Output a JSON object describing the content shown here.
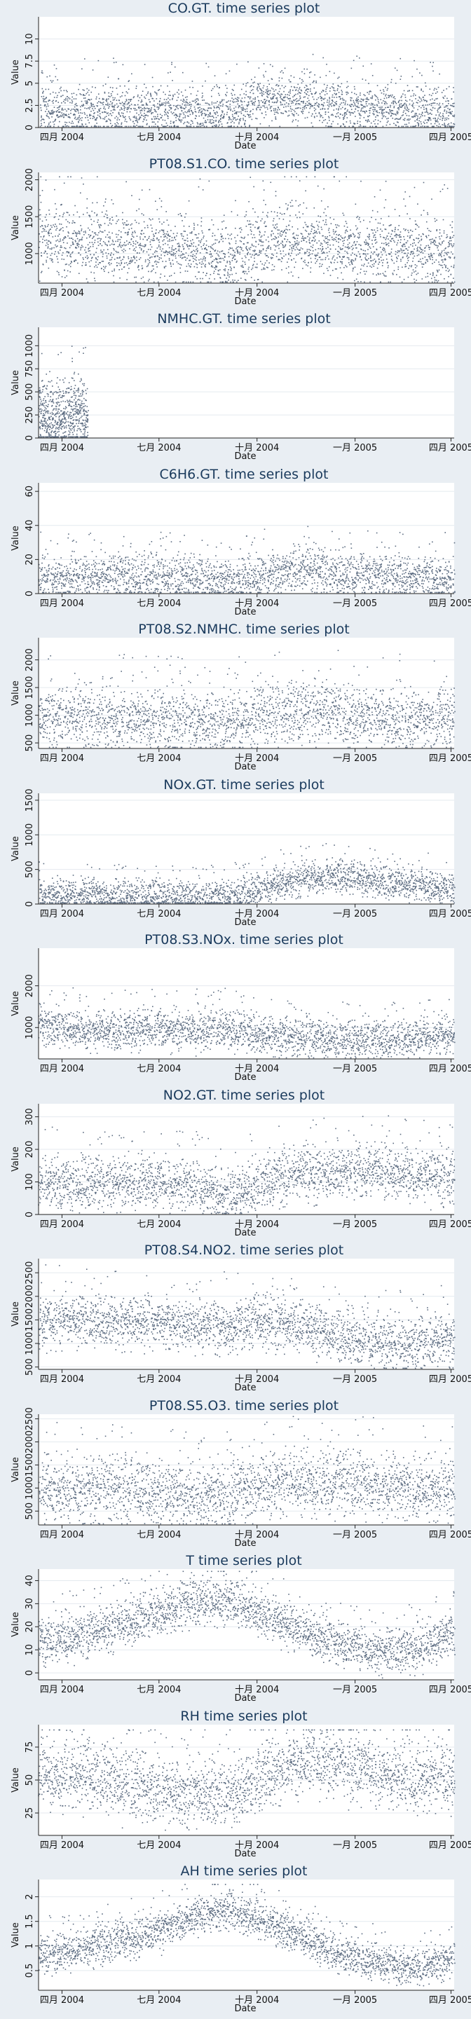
{
  "chart_data": [
    {
      "type": "scatter",
      "title": "CO.GT.  time series plot",
      "xlabel": "Date",
      "ylabel": "Value",
      "ylim": [
        0,
        12.5
      ],
      "yticks": [
        "0",
        "2.5",
        "5",
        "7.5",
        "10"
      ],
      "yticks_v": [
        0,
        2.5,
        5,
        7.5,
        10
      ],
      "xticks": [
        "四月 2004",
        "七月 2004",
        "十月 2004",
        "一月 2005",
        "四月 2005"
      ],
      "grid": true,
      "x_range": [
        "2004-03-10",
        "2005-04-04"
      ],
      "series": [
        {
          "levels": [
            2.1,
            2.0,
            2.0,
            1.8,
            1.9,
            1.6,
            3.4,
            3.2,
            2.3,
            2.3,
            2.0,
            1.8
          ],
          "spread": 1.3,
          "max": 11.9
        }
      ]
    },
    {
      "type": "scatter",
      "title": "PT08.S1.CO.  time series plot",
      "xlabel": "Date",
      "ylabel": "Value",
      "ylim": [
        600,
        2100
      ],
      "yticks": [
        "1000",
        "1500",
        "2000"
      ],
      "yticks_v": [
        1000,
        1500,
        2000
      ],
      "xticks": [
        "四月 2004",
        "七月 2004",
        "十月 2004",
        "一月 2005",
        "四月 2005"
      ],
      "grid": true,
      "x_range": [
        "2004-03-10",
        "2005-04-04"
      ],
      "series": [
        {
          "levels": [
            1200,
            1150,
            1100,
            1050,
            1050,
            950,
            1150,
            1200,
            1100,
            1050,
            1050,
            1000
          ],
          "spread": 220,
          "max": 2040
        }
      ]
    },
    {
      "type": "scatter",
      "title": "NMHC.GT.  time series plot",
      "xlabel": "Date",
      "ylabel": "Value",
      "ylim": [
        0,
        1200
      ],
      "yticks": [
        "0",
        "250",
        "500",
        "750",
        "1000"
      ],
      "yticks_v": [
        0,
        250,
        500,
        750,
        1000
      ],
      "xticks": [
        "四月 2004",
        "七月 2004",
        "十月 2004",
        "一月 2005",
        "四月 2005"
      ],
      "grid": true,
      "x_range": [
        "2004-03-10",
        "2005-04-04"
      ],
      "series": [
        {
          "levels": [
            220,
            260
          ],
          "spread": 180,
          "max": 1190,
          "until": "2004-04-25"
        }
      ]
    },
    {
      "type": "scatter",
      "title": "C6H6.GT.  time series plot",
      "xlabel": "Date",
      "ylabel": "Value",
      "ylim": [
        0,
        65
      ],
      "yticks": [
        "0",
        "20",
        "40",
        "60"
      ],
      "yticks_v": [
        0,
        20,
        40,
        60
      ],
      "xticks": [
        "四月 2004",
        "七月 2004",
        "十月 2004",
        "一月 2005",
        "四月 2005"
      ],
      "grid": true,
      "x_range": [
        "2004-03-10",
        "2005-04-04"
      ],
      "series": [
        {
          "levels": [
            10,
            9.5,
            9.5,
            9,
            9,
            7,
            11,
            14,
            12,
            10,
            9,
            9
          ],
          "spread": 6,
          "max": 63
        }
      ]
    },
    {
      "type": "scatter",
      "title": "PT08.S2.NMHC.  time series plot",
      "xlabel": "Date",
      "ylabel": "Value",
      "ylim": [
        400,
        2400
      ],
      "yticks": [
        "500",
        "1000",
        "1500",
        "2000"
      ],
      "yticks_v": [
        500,
        1000,
        1500,
        2000
      ],
      "xticks": [
        "四月 2004",
        "七月 2004",
        "十月 2004",
        "一月 2005",
        "四月 2005"
      ],
      "grid": true,
      "x_range": [
        "2004-03-10",
        "2005-04-04"
      ],
      "series": [
        {
          "levels": [
            950,
            950,
            950,
            900,
            900,
            850,
            1000,
            1050,
            1000,
            950,
            950,
            900
          ],
          "spread": 260,
          "max": 2200
        }
      ]
    },
    {
      "type": "scatter",
      "title": "NOx.GT.  time series plot",
      "xlabel": "Date",
      "ylabel": "Value",
      "ylim": [
        0,
        1600
      ],
      "yticks": [
        "0",
        "500",
        "1000",
        "1500"
      ],
      "yticks_v": [
        0,
        500,
        1000,
        1500
      ],
      "xticks": [
        "四月 2004",
        "七月 2004",
        "十月 2004",
        "一月 2005",
        "四月 2005"
      ],
      "grid": true,
      "x_range": [
        "2004-03-10",
        "2005-04-04"
      ],
      "series": [
        {
          "levels": [
            140,
            130,
            120,
            110,
            100,
            80,
            250,
            350,
            400,
            330,
            250,
            230
          ],
          "spread": 110,
          "max": 1480
        }
      ]
    },
    {
      "type": "scatter",
      "title": "PT08.S3.NOx.  time series plot",
      "xlabel": "Date",
      "ylabel": "Value",
      "ylim": [
        250,
        2900
      ],
      "yticks": [
        "1000",
        "2000"
      ],
      "yticks_v": [
        1000,
        2000
      ],
      "xticks": [
        "四月 2004",
        "七月 2004",
        "十月 2004",
        "一月 2005",
        "四月 2005"
      ],
      "grid": true,
      "x_range": [
        "2004-03-10",
        "2005-04-04"
      ],
      "series": [
        {
          "levels": [
            1050,
            950,
            900,
            950,
            950,
            950,
            800,
            750,
            700,
            700,
            750,
            800
          ],
          "spread": 220,
          "max": 2700
        }
      ]
    },
    {
      "type": "scatter",
      "title": "NO2.GT.  time series plot",
      "xlabel": "Date",
      "ylabel": "Value",
      "ylim": [
        0,
        340
      ],
      "yticks": [
        "0",
        "100",
        "200",
        "300"
      ],
      "yticks_v": [
        0,
        100,
        200,
        300
      ],
      "xticks": [
        "四月 2004",
        "七月 2004",
        "十月 2004",
        "一月 2005",
        "四月 2005"
      ],
      "grid": true,
      "x_range": [
        "2004-03-10",
        "2005-04-04"
      ],
      "series": [
        {
          "levels": [
            100,
            95,
            90,
            95,
            90,
            60,
            100,
            125,
            130,
            140,
            120,
            110
          ],
          "spread": 38,
          "max": 330
        }
      ]
    },
    {
      "type": "scatter",
      "title": "PT08.S4.NO2.  time series plot",
      "xlabel": "Date",
      "ylabel": "Value",
      "ylim": [
        450,
        2800
      ],
      "yticks": [
        "500",
        "1000",
        "1500",
        "2000",
        "2500"
      ],
      "yticks_v": [
        500,
        1000,
        1500,
        2000,
        2500
      ],
      "xticks": [
        "四月 2004",
        "七月 2004",
        "十月 2004",
        "一月 2005",
        "四月 2005"
      ],
      "grid": true,
      "x_range": [
        "2004-03-10",
        "2005-04-04"
      ],
      "series": [
        {
          "levels": [
            1500,
            1500,
            1450,
            1450,
            1400,
            1350,
            1450,
            1350,
            1150,
            1000,
            1000,
            1100
          ],
          "spread": 260,
          "max": 2750
        }
      ]
    },
    {
      "type": "scatter",
      "title": "PT08.S5.O3.  time series plot",
      "xlabel": "Date",
      "ylabel": "Value",
      "ylim": [
        200,
        2600
      ],
      "yticks": [
        "500",
        "1000",
        "1500",
        "2000",
        "2500"
      ],
      "yticks_v": [
        500,
        1000,
        1500,
        2000,
        2500
      ],
      "xticks": [
        "四月 2004",
        "七月 2004",
        "十月 2004",
        "一月 2005",
        "四月 2005"
      ],
      "grid": true,
      "x_range": [
        "2004-03-10",
        "2005-04-04"
      ],
      "series": [
        {
          "levels": [
            1000,
            950,
            950,
            900,
            850,
            800,
            1050,
            1150,
            1100,
            1050,
            1000,
            950
          ],
          "spread": 330,
          "max": 2550
        }
      ]
    },
    {
      "type": "scatter",
      "title": "T  time series plot",
      "xlabel": "Date",
      "ylabel": "Value",
      "ylim": [
        -3,
        45
      ],
      "yticks": [
        "0",
        "10",
        "20",
        "30",
        "40"
      ],
      "yticks_v": [
        0,
        10,
        20,
        30,
        40
      ],
      "xticks": [
        "四月 2004",
        "七月 2004",
        "十月 2004",
        "一月 2005",
        "四月 2005"
      ],
      "grid": true,
      "x_range": [
        "2004-03-10",
        "2005-04-04"
      ],
      "series": [
        {
          "levels": [
            13,
            16,
            20,
            25,
            30,
            31,
            25,
            18,
            12,
            9,
            10,
            17
          ],
          "spread": 4.5,
          "max": 44
        }
      ]
    },
    {
      "type": "scatter",
      "title": "RH  time series plot",
      "xlabel": "Date",
      "ylabel": "Value",
      "ylim": [
        8,
        92
      ],
      "yticks": [
        "25",
        "50",
        "75"
      ],
      "yticks_v": [
        25,
        50,
        75
      ],
      "xticks": [
        "四月 2004",
        "七月 2004",
        "十月 2004",
        "一月 2005",
        "四月 2005"
      ],
      "grid": true,
      "x_range": [
        "2004-03-10",
        "2005-04-04"
      ],
      "series": [
        {
          "levels": [
            55,
            52,
            50,
            42,
            38,
            38,
            55,
            65,
            62,
            55,
            50,
            52
          ],
          "spread": 12,
          "max": 88
        }
      ]
    },
    {
      "type": "scatter",
      "title": "AH  time series plot",
      "xlabel": "Date",
      "ylabel": "Value",
      "ylim": [
        0.1,
        2.35
      ],
      "yticks": [
        "0.5",
        "1",
        "1.5",
        "2"
      ],
      "yticks_v": [
        0.5,
        1,
        1.5,
        2
      ],
      "xticks": [
        "四月 2004",
        "七月 2004",
        "十月 2004",
        "一月 2005",
        "四月 2005"
      ],
      "grid": true,
      "x_range": [
        "2004-03-10",
        "2005-04-04"
      ],
      "series": [
        {
          "levels": [
            0.8,
            0.9,
            1.1,
            1.25,
            1.55,
            1.75,
            1.5,
            1.2,
            0.8,
            0.65,
            0.55,
            0.75
          ],
          "spread": 0.18,
          "max": 2.25
        }
      ]
    }
  ]
}
